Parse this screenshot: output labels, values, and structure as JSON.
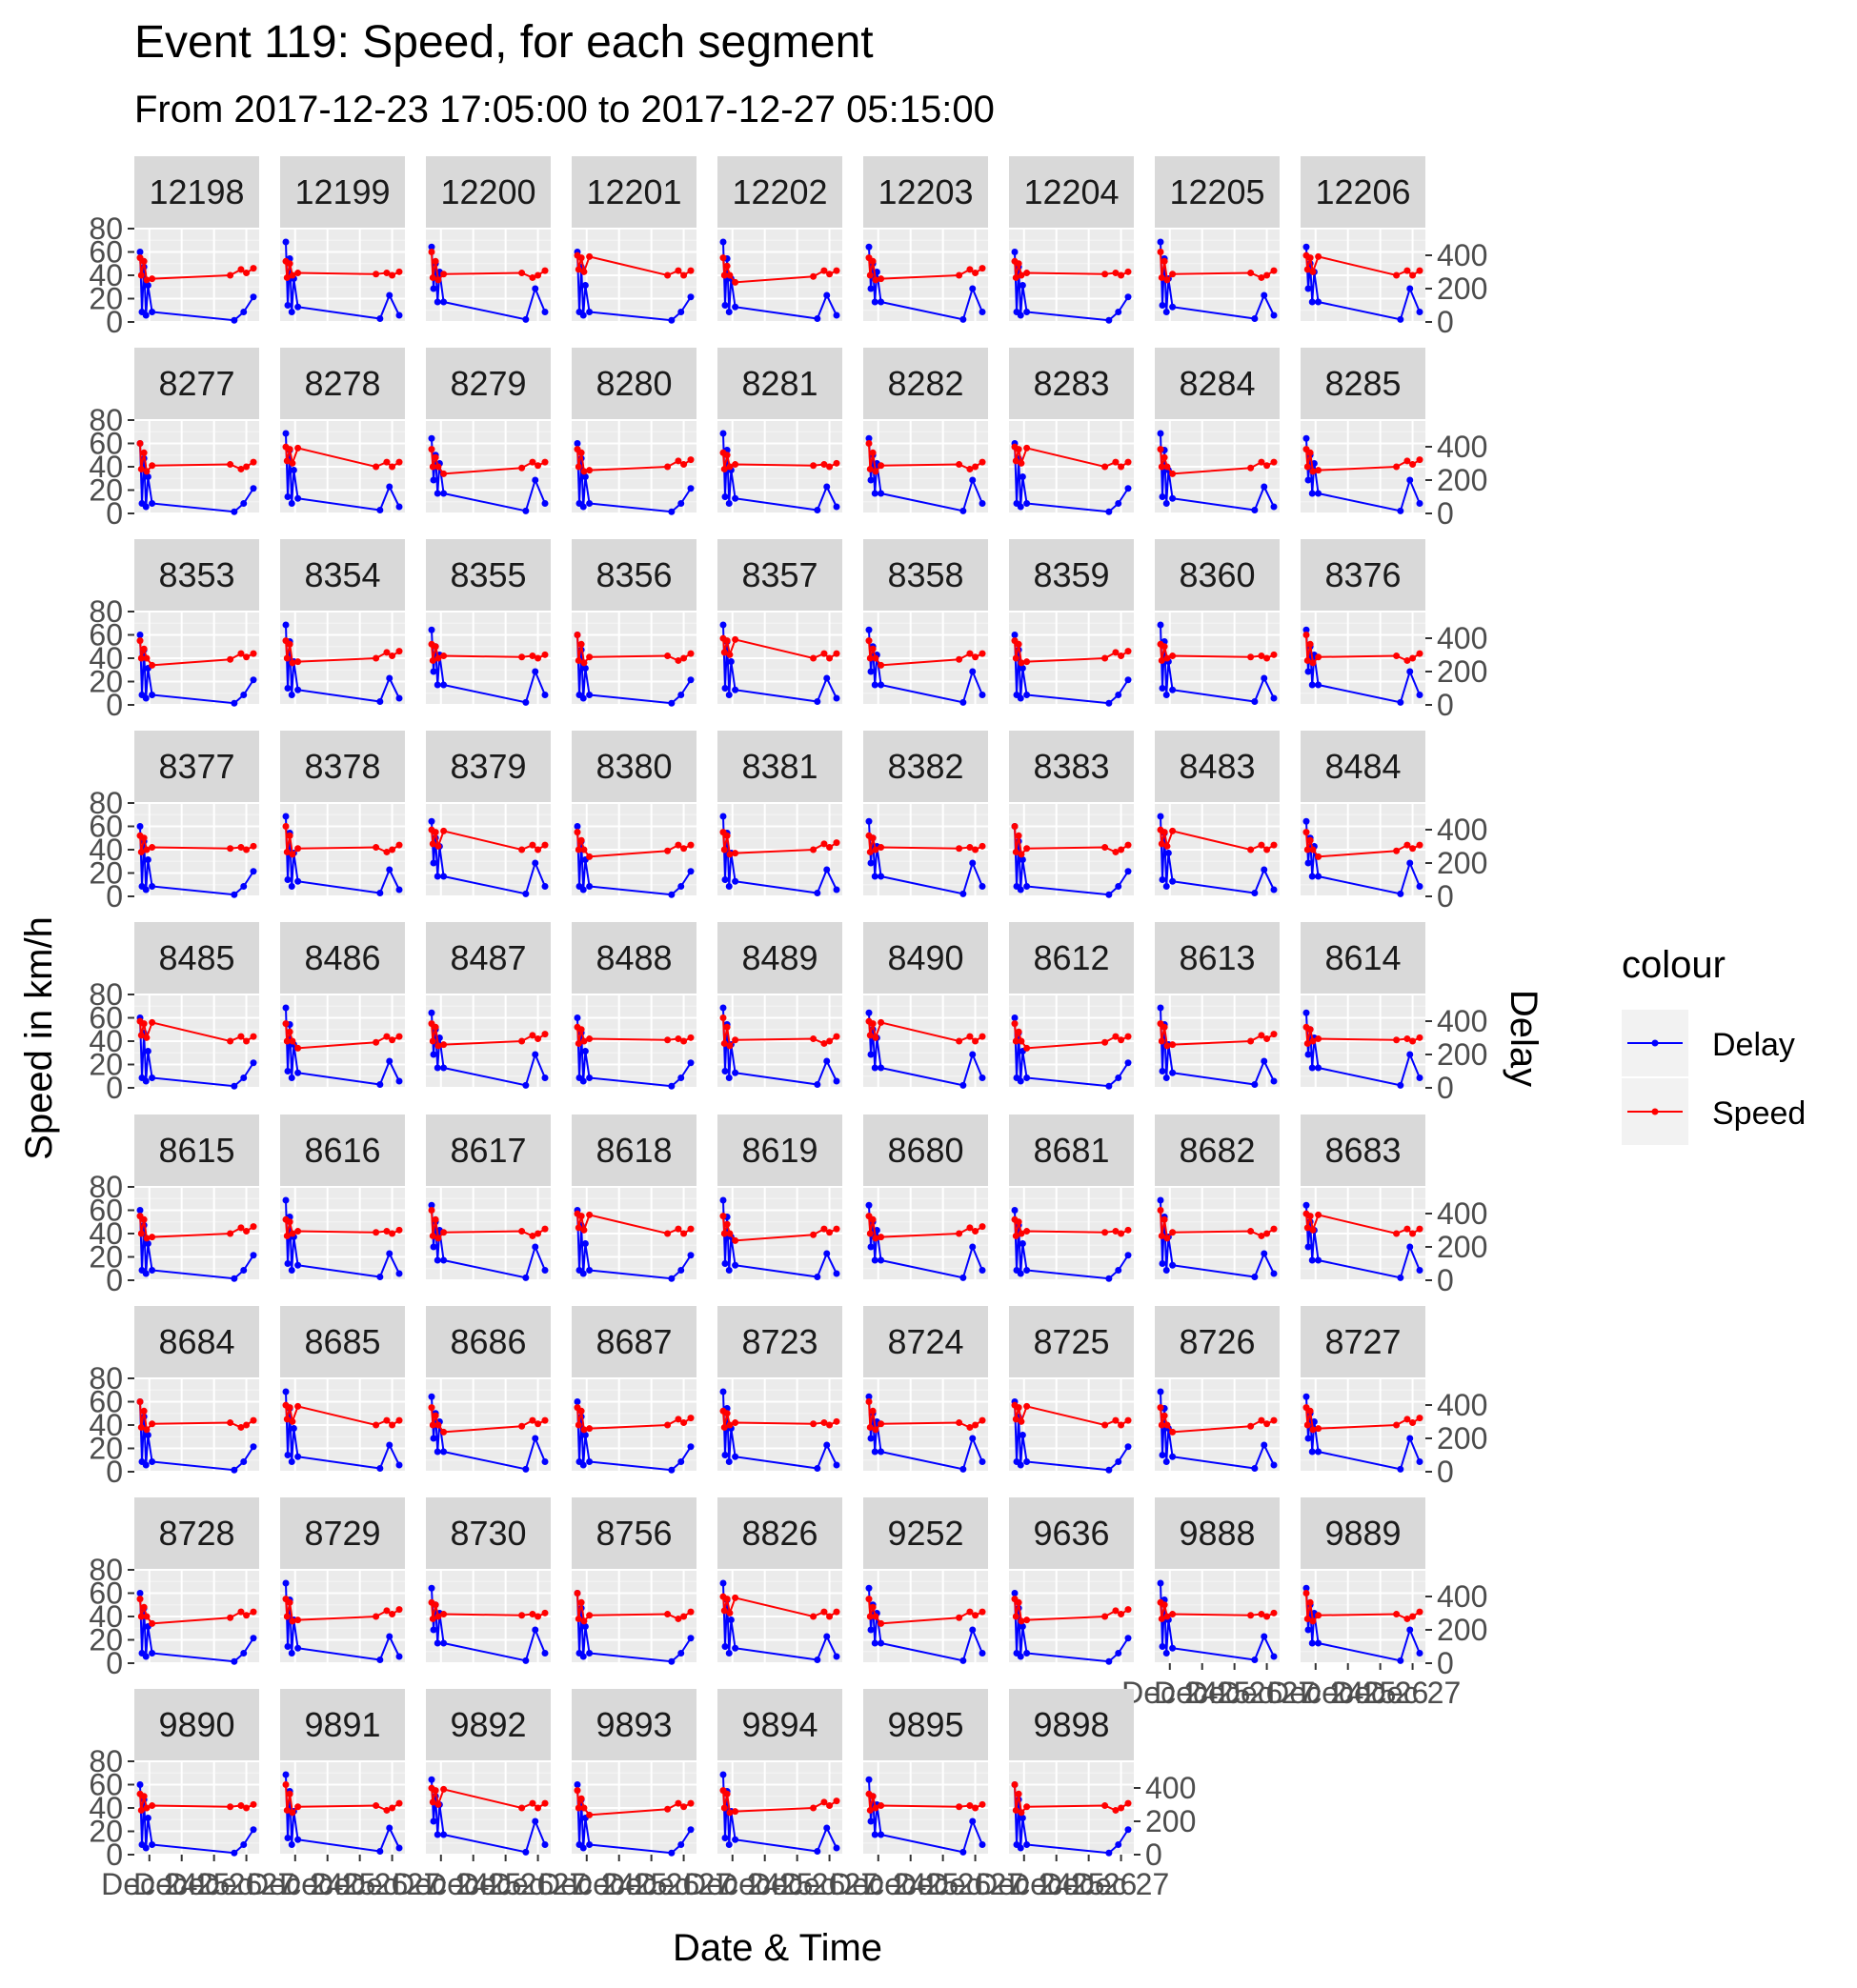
{
  "chart_data": {
    "type": "line",
    "title": "Event 119: Speed, for each segment",
    "subtitle": "From 2017-12-23 17:05:00 to 2017-12-27 05:15:00",
    "xlabel": "Date & Time",
    "ylabel": "Speed in km/h",
    "ylabel_secondary": "Delay",
    "x_tick_labels": [
      "Dec 24",
      "Dec 25",
      "Dec 26",
      "Dec 27"
    ],
    "xlim": [
      "2017-12-23 17:05:00",
      "2017-12-27 05:15:00"
    ],
    "ylim": [
      0,
      80
    ],
    "y_ticks": [
      0,
      20,
      40,
      60,
      80
    ],
    "ylim_secondary": [
      0,
      560
    ],
    "y_ticks_secondary": [
      0,
      200,
      400
    ],
    "grid": true,
    "legend": {
      "title": "colour",
      "position": "right",
      "entries": [
        {
          "name": "Delay",
          "color": "#0000ff"
        },
        {
          "name": "Speed",
          "color": "#ff0000"
        }
      ]
    },
    "facets": [
      "12198",
      "12199",
      "12200",
      "12201",
      "12202",
      "12203",
      "12204",
      "12205",
      "12206",
      "8277",
      "8278",
      "8279",
      "8280",
      "8281",
      "8282",
      "8283",
      "8284",
      "8285",
      "8353",
      "8354",
      "8355",
      "8356",
      "8357",
      "8358",
      "8359",
      "8360",
      "8376",
      "8377",
      "8378",
      "8379",
      "8380",
      "8381",
      "8382",
      "8383",
      "8483",
      "8484",
      "8485",
      "8486",
      "8487",
      "8488",
      "8489",
      "8490",
      "8612",
      "8613",
      "8614",
      "8615",
      "8616",
      "8617",
      "8618",
      "8619",
      "8680",
      "8681",
      "8682",
      "8683",
      "8684",
      "8685",
      "8686",
      "8687",
      "8723",
      "8724",
      "8725",
      "8726",
      "8727",
      "8728",
      "8729",
      "8730",
      "8756",
      "8826",
      "9252",
      "9636",
      "9888",
      "9889",
      "9890",
      "9891",
      "9892",
      "9893",
      "9894",
      "9895",
      "9898"
    ],
    "series_template": {
      "Speed": {
        "x": [
          "2017-12-23 17:05",
          "2017-12-23 18:00",
          "2017-12-23 20:00",
          "2017-12-23 22:00",
          "2017-12-24 02:00",
          "2017-12-26 12:00",
          "2017-12-26 20:00",
          "2017-12-27 00:00",
          "2017-12-27 05:15"
        ],
        "profiles": {
          "A": [
            55,
            40,
            52,
            36,
            37,
            40,
            45,
            42,
            46
          ],
          "B": [
            57,
            45,
            55,
            43,
            56,
            40,
            44,
            40,
            44
          ],
          "C": [
            52,
            38,
            50,
            40,
            42,
            41,
            42,
            40,
            43
          ],
          "D": [
            55,
            40,
            48,
            40,
            34,
            39,
            44,
            41,
            44
          ],
          "E": [
            60,
            38,
            52,
            36,
            41,
            42,
            38,
            40,
            44
          ]
        }
      },
      "Delay": {
        "x": [
          "2017-12-23 17:05",
          "2017-12-23 18:30",
          "2017-12-23 20:00",
          "2017-12-23 21:30",
          "2017-12-23 23:00",
          "2017-12-24 02:00",
          "2017-12-26 15:00",
          "2017-12-26 22:00",
          "2017-12-27 05:15"
        ],
        "profiles": {
          "A": [
            420,
            60,
            330,
            40,
            220,
            60,
            10,
            60,
            150
          ],
          "B": [
            480,
            100,
            380,
            60,
            260,
            90,
            20,
            160,
            40
          ],
          "C": [
            450,
            200,
            350,
            120,
            300,
            120,
            15,
            200,
            60
          ]
        }
      }
    }
  }
}
